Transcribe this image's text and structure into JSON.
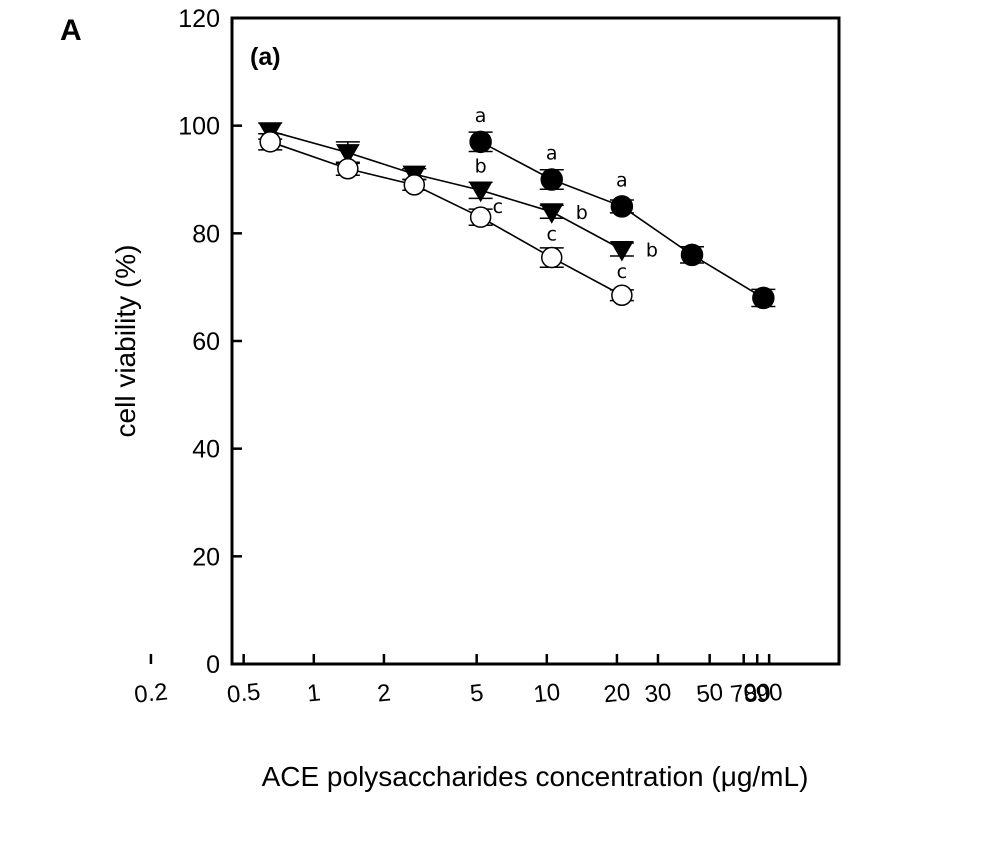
{
  "panel_label": "A",
  "chart_data": {
    "type": "line",
    "x_scale": "log",
    "panel_tag": "(a)",
    "title": "",
    "xlabel": "ACE polysaccharides concentration (μg/mL)",
    "ylabel": "cell viability (%)",
    "ylim": [
      0,
      120
    ],
    "yticks": [
      0,
      20,
      40,
      60,
      80,
      100,
      120
    ],
    "xtick_labels": [
      "0.2",
      "0.5",
      "1",
      "2",
      "5",
      "10",
      "20",
      "30",
      "50",
      "70",
      "80",
      "90"
    ],
    "grid": false,
    "legend": "none",
    "series": [
      {
        "marker": "filled-circle",
        "x": [
          5.2,
          10.5,
          21,
          42,
          85
        ],
        "y": [
          97,
          90,
          85,
          76,
          68
        ],
        "err": [
          1.8,
          1.8,
          1.2,
          1.5,
          1.6
        ],
        "labels": [
          "a",
          "a",
          "a",
          "",
          ""
        ]
      },
      {
        "marker": "filled-triangle-down",
        "x": [
          0.65,
          1.4,
          2.7,
          5.2,
          10.5,
          21
        ],
        "y": [
          99,
          95,
          91,
          88,
          84,
          77
        ],
        "err": [
          1.5,
          2.0,
          1.0,
          1.5,
          1.2,
          1.2
        ],
        "labels": [
          "",
          "",
          "",
          "b",
          "b",
          "b"
        ]
      },
      {
        "marker": "open-circle",
        "x": [
          0.65,
          1.4,
          2.7,
          5.2,
          10.5,
          21
        ],
        "y": [
          97,
          92,
          89,
          83,
          75.5,
          68.5
        ],
        "err": [
          1.5,
          1.2,
          1.0,
          1.5,
          1.8,
          1.0
        ],
        "labels": [
          "",
          "",
          "",
          "c",
          "c",
          "c"
        ]
      }
    ]
  }
}
